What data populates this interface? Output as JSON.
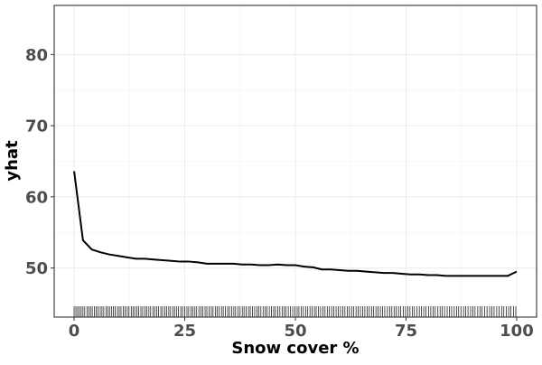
{
  "chart_data": {
    "type": "line",
    "title": "",
    "xlabel": "Snow cover %",
    "ylabel": "yhat",
    "xlim": [
      -4.5,
      104.5
    ],
    "ylim": [
      43.1,
      86.9
    ],
    "x_ticks": [
      0,
      25,
      50,
      75,
      100
    ],
    "y_ticks": [
      50,
      60,
      70,
      80
    ],
    "x_tick_labels": [
      "0",
      "25",
      "50",
      "75",
      "100"
    ],
    "y_tick_labels": [
      "50",
      "60",
      "70",
      "80"
    ],
    "grid": true,
    "legend": "none",
    "series": [
      {
        "x": [
          0,
          2,
          4,
          6,
          8,
          10,
          12,
          14,
          16,
          18,
          20,
          22,
          24,
          26,
          28,
          30,
          32,
          34,
          36,
          38,
          40,
          42,
          44,
          46,
          48,
          50,
          52,
          54,
          56,
          58,
          60,
          62,
          64,
          66,
          68,
          70,
          72,
          74,
          76,
          78,
          80,
          82,
          84,
          86,
          88,
          90,
          92,
          94,
          96,
          98,
          100
        ],
        "values": [
          63.6,
          53.9,
          52.6,
          52.2,
          51.9,
          51.7,
          51.5,
          51.3,
          51.3,
          51.2,
          51.1,
          51.0,
          50.9,
          50.9,
          50.8,
          50.6,
          50.6,
          50.6,
          50.6,
          50.5,
          50.5,
          50.4,
          50.4,
          50.5,
          50.4,
          50.4,
          50.2,
          50.1,
          49.8,
          49.8,
          49.7,
          49.6,
          49.6,
          49.5,
          49.4,
          49.3,
          49.3,
          49.2,
          49.1,
          49.1,
          49.0,
          49.0,
          48.9,
          48.9,
          48.9,
          48.9,
          48.9,
          48.9,
          48.9,
          48.9,
          49.5
        ]
      }
    ],
    "rug_x": [
      0,
      0.4,
      0.8,
      1.2,
      1.6,
      2.0,
      2.4,
      2.9,
      3.3,
      3.7,
      4.1,
      4.6,
      5.0,
      5.4,
      5.9,
      6.3,
      6.7,
      7.2,
      7.6,
      8.0,
      8.5,
      8.9,
      9.3,
      9.8,
      10.2,
      10.6,
      11.1,
      11.5,
      12.0,
      12.4,
      12.9,
      13.3,
      13.7,
      14.2,
      14.6,
      15.1,
      15.5,
      16.0,
      16.4,
      16.9,
      17.3,
      17.8,
      18.2,
      18.7,
      19.1,
      19.6,
      20.0,
      20.5,
      20.9,
      21.4,
      21.8,
      22.3,
      22.7,
      23.2,
      23.6,
      24.1,
      24.5,
      25.0,
      25.5,
      25.9,
      26.4,
      26.8,
      27.3,
      27.7,
      28.2,
      28.7,
      29.1,
      29.6,
      30.0,
      30.5,
      31.0,
      31.4,
      31.9,
      32.3,
      32.8,
      33.3,
      33.7,
      34.2,
      34.7,
      35.1,
      35.6,
      36.1,
      36.5,
      37.0,
      37.5,
      38.0,
      38.4,
      38.9,
      39.4,
      39.8,
      40.3,
      40.8,
      41.3,
      41.7,
      42.2,
      42.7,
      43.2,
      43.6,
      44.1,
      44.6,
      45.1,
      45.5,
      46.0,
      46.5,
      47.0,
      47.5,
      47.9,
      48.4,
      48.9,
      49.4,
      49.9,
      50.4,
      50.8,
      51.3,
      51.8,
      52.3,
      52.8,
      53.3,
      53.8,
      54.3,
      54.7,
      55.2,
      55.7,
      56.2,
      56.7,
      57.2,
      57.7,
      58.2,
      58.7,
      59.2,
      59.7,
      60.2,
      60.7,
      61.2,
      61.7,
      62.2,
      62.7,
      63.2,
      63.7,
      64.2,
      64.7,
      65.2,
      65.7,
      66.2,
      66.7,
      67.2,
      67.7,
      68.2,
      68.7,
      69.2,
      69.7,
      70.2,
      70.8,
      71.3,
      71.8,
      72.3,
      72.8,
      73.3,
      73.8,
      74.4,
      74.9,
      75.4,
      75.9,
      76.4,
      76.9,
      77.5,
      78.0,
      78.5,
      79.0,
      79.5,
      80.1,
      80.6,
      81.1,
      81.6,
      82.2,
      82.7,
      83.2,
      83.7,
      84.3,
      84.8,
      85.3,
      85.9,
      86.4,
      86.9,
      87.4,
      88.0,
      88.5,
      89.0,
      89.6,
      90.1,
      90.6,
      91.2,
      91.7,
      92.2,
      92.8,
      93.3,
      93.9,
      94.4,
      94.9,
      95.5,
      96.0,
      96.6,
      97.1,
      97.7,
      98.2,
      98.7,
      99.3,
      99.8
    ]
  }
}
